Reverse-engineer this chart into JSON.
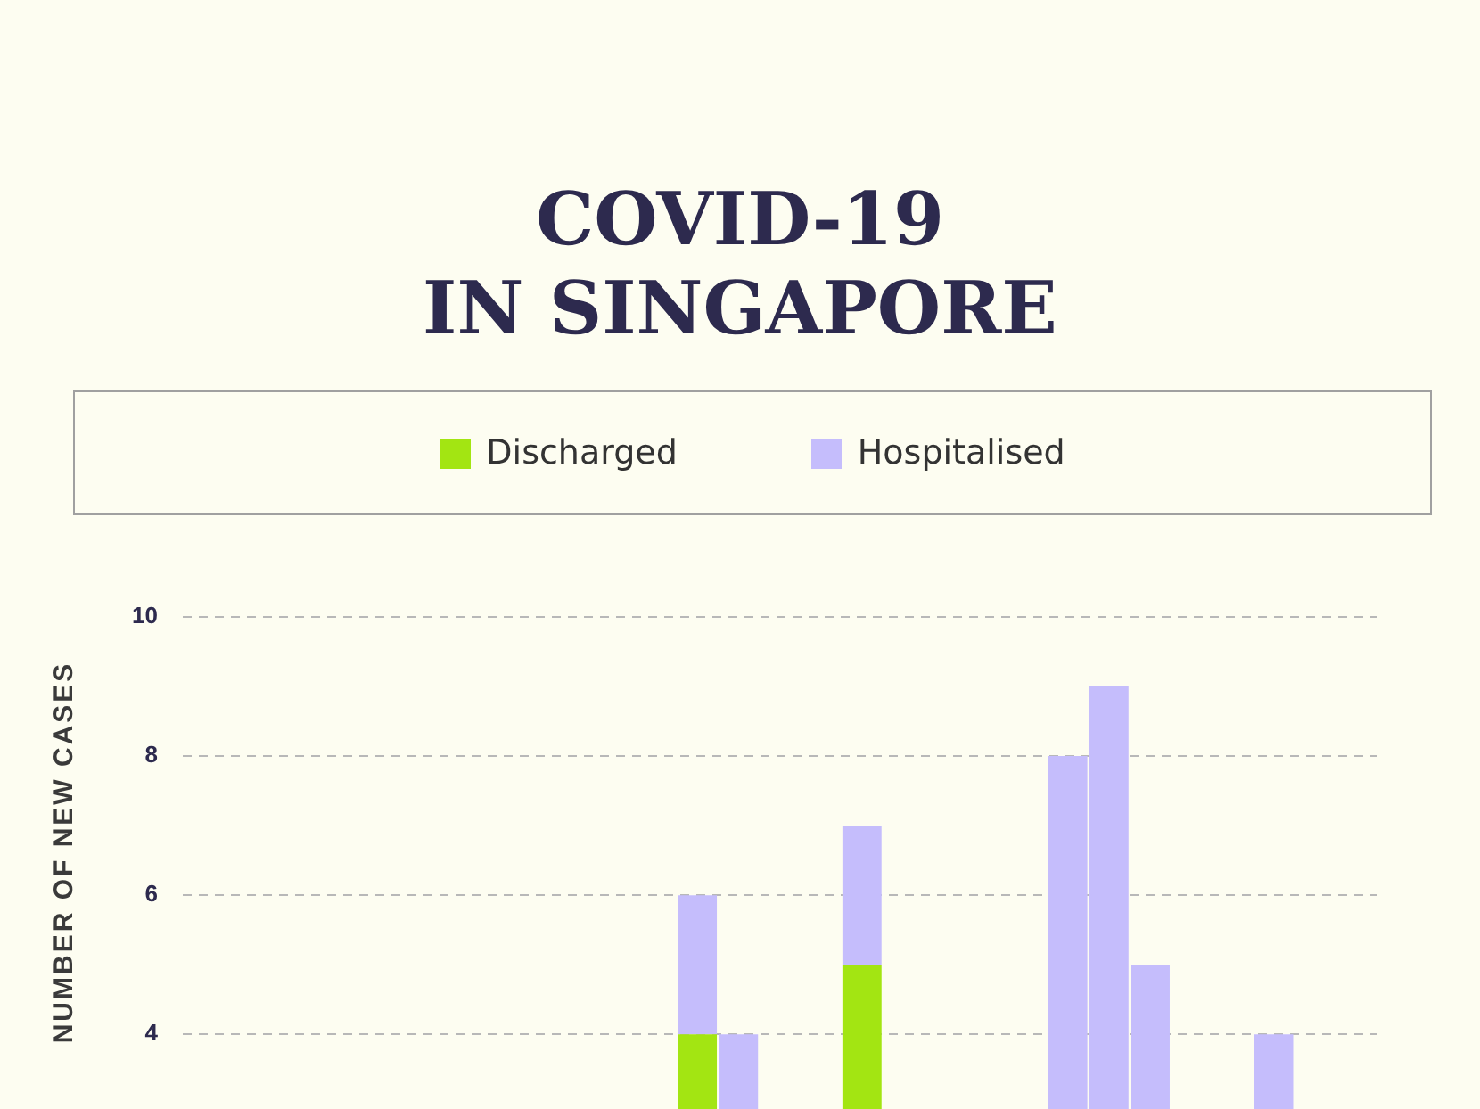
{
  "chart_data": {
    "type": "bar",
    "title": "COVID-19\nIN SINGAPORE",
    "ylabel": "NUMBER OF NEW CASES",
    "categories": [
      null,
      null,
      null,
      null,
      null,
      null,
      null,
      null,
      null,
      null,
      null,
      null,
      null,
      null,
      null,
      null,
      null,
      null,
      null,
      null,
      null,
      null,
      null,
      null,
      null,
      null,
      null,
      null,
      null
    ],
    "series": [
      {
        "name": "Discharged",
        "color": "#a3e512",
        "values": [
          null,
          null,
          null,
          null,
          null,
          null,
          null,
          null,
          null,
          null,
          null,
          null,
          4,
          null,
          null,
          null,
          5,
          null,
          null,
          null,
          null,
          null,
          null,
          null,
          null,
          null,
          null,
          null,
          null
        ]
      },
      {
        "name": "Hospitalised",
        "color": "#c5bdfc",
        "values": [
          null,
          null,
          null,
          null,
          null,
          null,
          null,
          null,
          null,
          null,
          null,
          null,
          2,
          4,
          null,
          null,
          2,
          null,
          null,
          null,
          null,
          8,
          9,
          5,
          null,
          null,
          4,
          null,
          null
        ]
      }
    ],
    "stacked": true,
    "ylim": [
      0,
      10
    ],
    "yticks": [
      4,
      6,
      8,
      10
    ],
    "grid": "y",
    "legend": "top"
  }
}
